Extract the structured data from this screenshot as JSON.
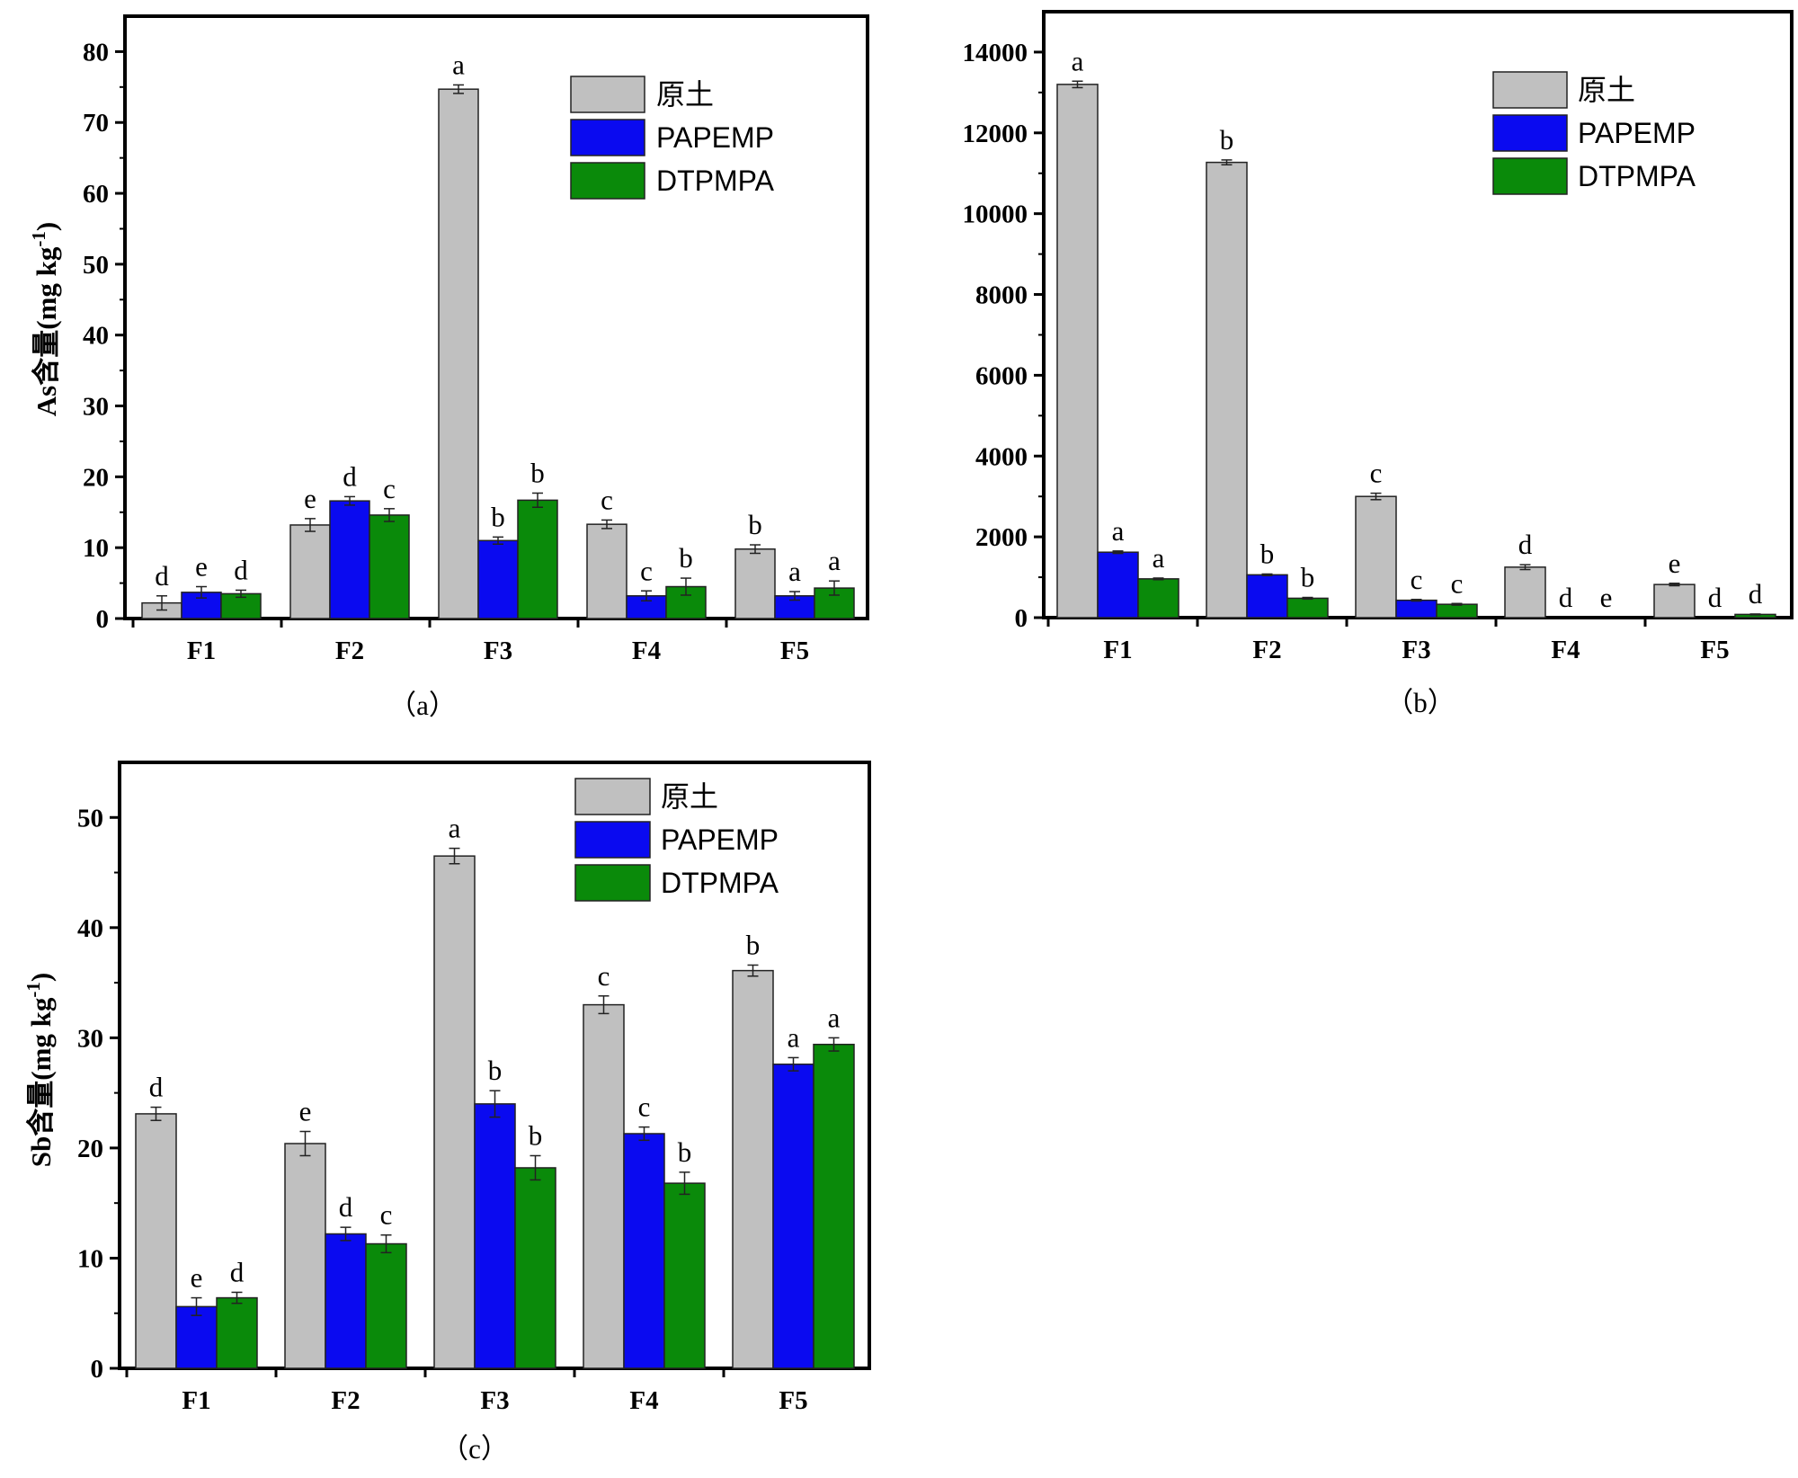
{
  "legend": [
    "原土",
    "PAPEMP",
    "DTPMPA"
  ],
  "colors": {
    "yuantu": "#c0c0c0",
    "papemp": "#0a0af0",
    "dtpmpa": "#0a8a0a",
    "axis": "#000000",
    "error": "#222222"
  },
  "chart_data": [
    {
      "type": "bar",
      "caption": "（a）",
      "categories": [
        "F1",
        "F2",
        "F3",
        "F4",
        "F5"
      ],
      "ylabel": "As含量(mg kg-1)",
      "ylabel_main": "As含量(mg kg",
      "ylabel_sup": "-1",
      "ylabel_close": ")",
      "ylim": [
        0,
        85
      ],
      "yticks": [
        0,
        10,
        20,
        30,
        40,
        50,
        60,
        70,
        80
      ],
      "ytick_labels": [
        "0",
        "10",
        "20",
        "30",
        "40",
        "50",
        "60",
        "70",
        "80"
      ],
      "series": [
        {
          "name": "原土",
          "values": [
            2.2,
            13.2,
            74.7,
            13.3,
            9.8
          ],
          "errors": [
            1.0,
            0.9,
            0.6,
            0.6,
            0.6
          ],
          "letters": [
            "d",
            "e",
            "a",
            "c",
            "b"
          ]
        },
        {
          "name": "PAPEMP",
          "values": [
            3.7,
            16.6,
            11.0,
            3.2,
            3.2
          ],
          "errors": [
            0.8,
            0.6,
            0.5,
            0.7,
            0.6
          ],
          "letters": [
            "e",
            "d",
            "b",
            "c",
            "a"
          ]
        },
        {
          "name": "DTPMPA",
          "values": [
            3.5,
            14.6,
            16.7,
            4.5,
            4.3
          ],
          "errors": [
            0.5,
            0.9,
            1.0,
            1.2,
            1.0
          ],
          "letters": [
            "d",
            "c",
            "b",
            "b",
            "a"
          ]
        }
      ]
    },
    {
      "type": "bar",
      "caption": "（b）",
      "categories": [
        "F1",
        "F2",
        "F3",
        "F4",
        "F5"
      ],
      "ylabel": "",
      "ylim": [
        0,
        15000
      ],
      "yticks": [
        0,
        2000,
        4000,
        6000,
        8000,
        10000,
        12000,
        14000
      ],
      "ytick_labels": [
        "0",
        "2000",
        "4000",
        "6000",
        "8000",
        "10000",
        "12000",
        "14000"
      ],
      "series": [
        {
          "name": "原土",
          "values": [
            13200,
            11270,
            3000,
            1250,
            820
          ],
          "errors": [
            80,
            60,
            80,
            60,
            30
          ],
          "letters": [
            "a",
            "b",
            "c",
            "d",
            "e"
          ]
        },
        {
          "name": "PAPEMP",
          "values": [
            1620,
            1060,
            430,
            0,
            0
          ],
          "errors": [
            30,
            20,
            20,
            0,
            0
          ],
          "letters": [
            "a",
            "b",
            "c",
            "d",
            "d"
          ]
        },
        {
          "name": "DTPMPA",
          "values": [
            960,
            480,
            330,
            0,
            80
          ],
          "errors": [
            20,
            20,
            20,
            0,
            10
          ],
          "letters": [
            "a",
            "b",
            "c",
            "e",
            "d"
          ]
        }
      ]
    },
    {
      "type": "bar",
      "caption": "（c）",
      "categories": [
        "F1",
        "F2",
        "F3",
        "F4",
        "F5"
      ],
      "ylabel": "Sb含量(mg kg-1)",
      "ylabel_main": "Sb含量(mg kg",
      "ylabel_sup": "-1",
      "ylabel_close": ")",
      "ylim": [
        0,
        55
      ],
      "yticks": [
        0,
        10,
        20,
        30,
        40,
        50
      ],
      "ytick_labels": [
        "0",
        "10",
        "20",
        "30",
        "40",
        "50"
      ],
      "series": [
        {
          "name": "原土",
          "values": [
            23.1,
            20.4,
            46.5,
            33.0,
            36.1
          ],
          "errors": [
            0.6,
            1.1,
            0.7,
            0.8,
            0.5
          ],
          "letters": [
            "d",
            "e",
            "a",
            "c",
            "b"
          ]
        },
        {
          "name": "PAPEMP",
          "values": [
            5.6,
            12.2,
            24.0,
            21.3,
            27.6
          ],
          "errors": [
            0.8,
            0.6,
            1.2,
            0.6,
            0.6
          ],
          "letters": [
            "e",
            "d",
            "b",
            "c",
            "a"
          ]
        },
        {
          "name": "DTPMPA",
          "values": [
            6.4,
            11.3,
            18.2,
            16.8,
            29.4
          ],
          "errors": [
            0.5,
            0.8,
            1.1,
            1.0,
            0.6
          ],
          "letters": [
            "d",
            "c",
            "b",
            "b",
            "a"
          ]
        }
      ]
    }
  ]
}
